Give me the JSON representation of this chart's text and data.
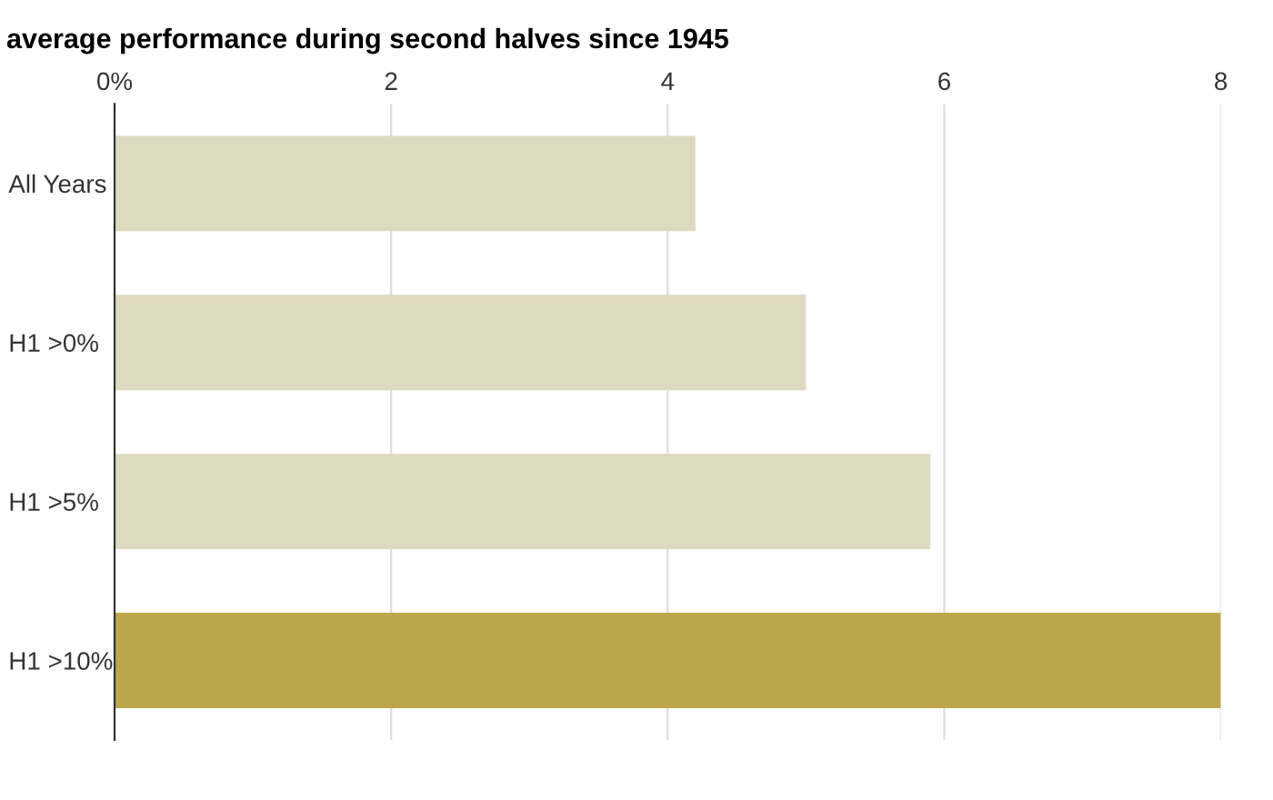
{
  "chart_data": {
    "type": "bar",
    "orientation": "horizontal",
    "title": "average performance during second halves since 1945",
    "categories": [
      "All Years",
      "H1 >0%",
      "H1 >5%",
      "H1 >10%"
    ],
    "values": [
      4.2,
      5.0,
      5.9,
      8.0
    ],
    "colors": [
      "#dedac0",
      "#dedac0",
      "#dedac0",
      "#bca84a"
    ],
    "xlim": [
      0,
      8
    ],
    "xticks": [
      {
        "value": 0,
        "label": "0%"
      },
      2,
      4,
      6,
      8
    ],
    "grid": "x",
    "legend": false
  }
}
